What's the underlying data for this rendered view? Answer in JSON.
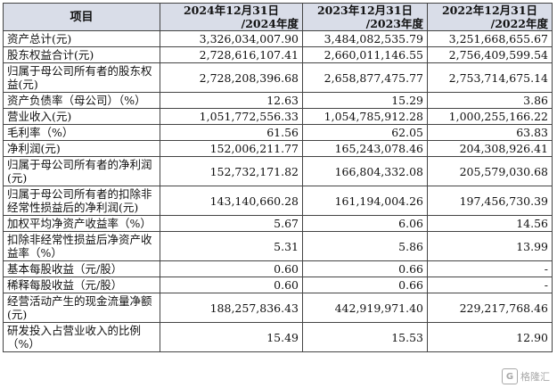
{
  "header": {
    "item": "项目",
    "col1": {
      "line1": "2024年12月31日",
      "line2": "/2024年度"
    },
    "col2": {
      "line1": "2023年12月31日",
      "line2": "/2023年度"
    },
    "col3": {
      "line1": "2022年12月31日",
      "line2": "/2022年度"
    }
  },
  "rows": [
    {
      "label": "资产总计(元)",
      "v2024": "3,326,034,007.90",
      "v2023": "3,484,082,535.79",
      "v2022": "3,251,668,655.67"
    },
    {
      "label": "股东权益合计(元)",
      "v2024": "2,728,616,107.41",
      "v2023": "2,660,011,146.55",
      "v2022": "2,756,409,599.54"
    },
    {
      "label": "归属于母公司所有者的股东权益(元)",
      "v2024": "2,728,208,396.68",
      "v2023": "2,658,877,475.77",
      "v2022": "2,753,714,675.14"
    },
    {
      "label": "资产负债率（母公司）（%）",
      "v2024": "12.63",
      "v2023": "15.29",
      "v2022": "3.86"
    },
    {
      "label": "营业收入(元)",
      "v2024": "1,051,772,556.33",
      "v2023": "1,054,785,912.28",
      "v2022": "1,000,255,166.22"
    },
    {
      "label": "毛利率（%）",
      "v2024": "61.56",
      "v2023": "62.05",
      "v2022": "63.83"
    },
    {
      "label": "净利润(元)",
      "v2024": "152,006,211.77",
      "v2023": "165,243,078.46",
      "v2022": "204,308,926.41"
    },
    {
      "label": "归属于母公司所有者的净利润(元)",
      "v2024": "152,732,171.82",
      "v2023": "166,804,332.08",
      "v2022": "205,579,030.68"
    },
    {
      "label": "归属于母公司所有者的扣除非经常性损益后的净利润(元)",
      "v2024": "143,140,660.28",
      "v2023": "161,194,004.26",
      "v2022": "197,456,730.39"
    },
    {
      "label": "加权平均净资产收益率（%）",
      "v2024": "5.67",
      "v2023": "6.06",
      "v2022": "14.56"
    },
    {
      "label": "扣除非经常性损益后净资产收益率（%）",
      "v2024": "5.31",
      "v2023": "5.86",
      "v2022": "13.99"
    },
    {
      "label": "基本每股收益（元/股）",
      "v2024": "0.60",
      "v2023": "0.66",
      "v2022": "-"
    },
    {
      "label": "稀释每股收益（元/股）",
      "v2024": "0.60",
      "v2023": "0.66",
      "v2022": "-"
    },
    {
      "label": "经营活动产生的现金流量净额(元)",
      "v2024": "188,257,836.43",
      "v2023": "442,919,971.40",
      "v2022": "229,217,768.46"
    },
    {
      "label": "研发投入占营业收入的比例（%）",
      "v2024": "15.49",
      "v2023": "15.53",
      "v2022": "12.90"
    }
  ],
  "watermark": {
    "icon": "G",
    "text": "格隆汇"
  }
}
